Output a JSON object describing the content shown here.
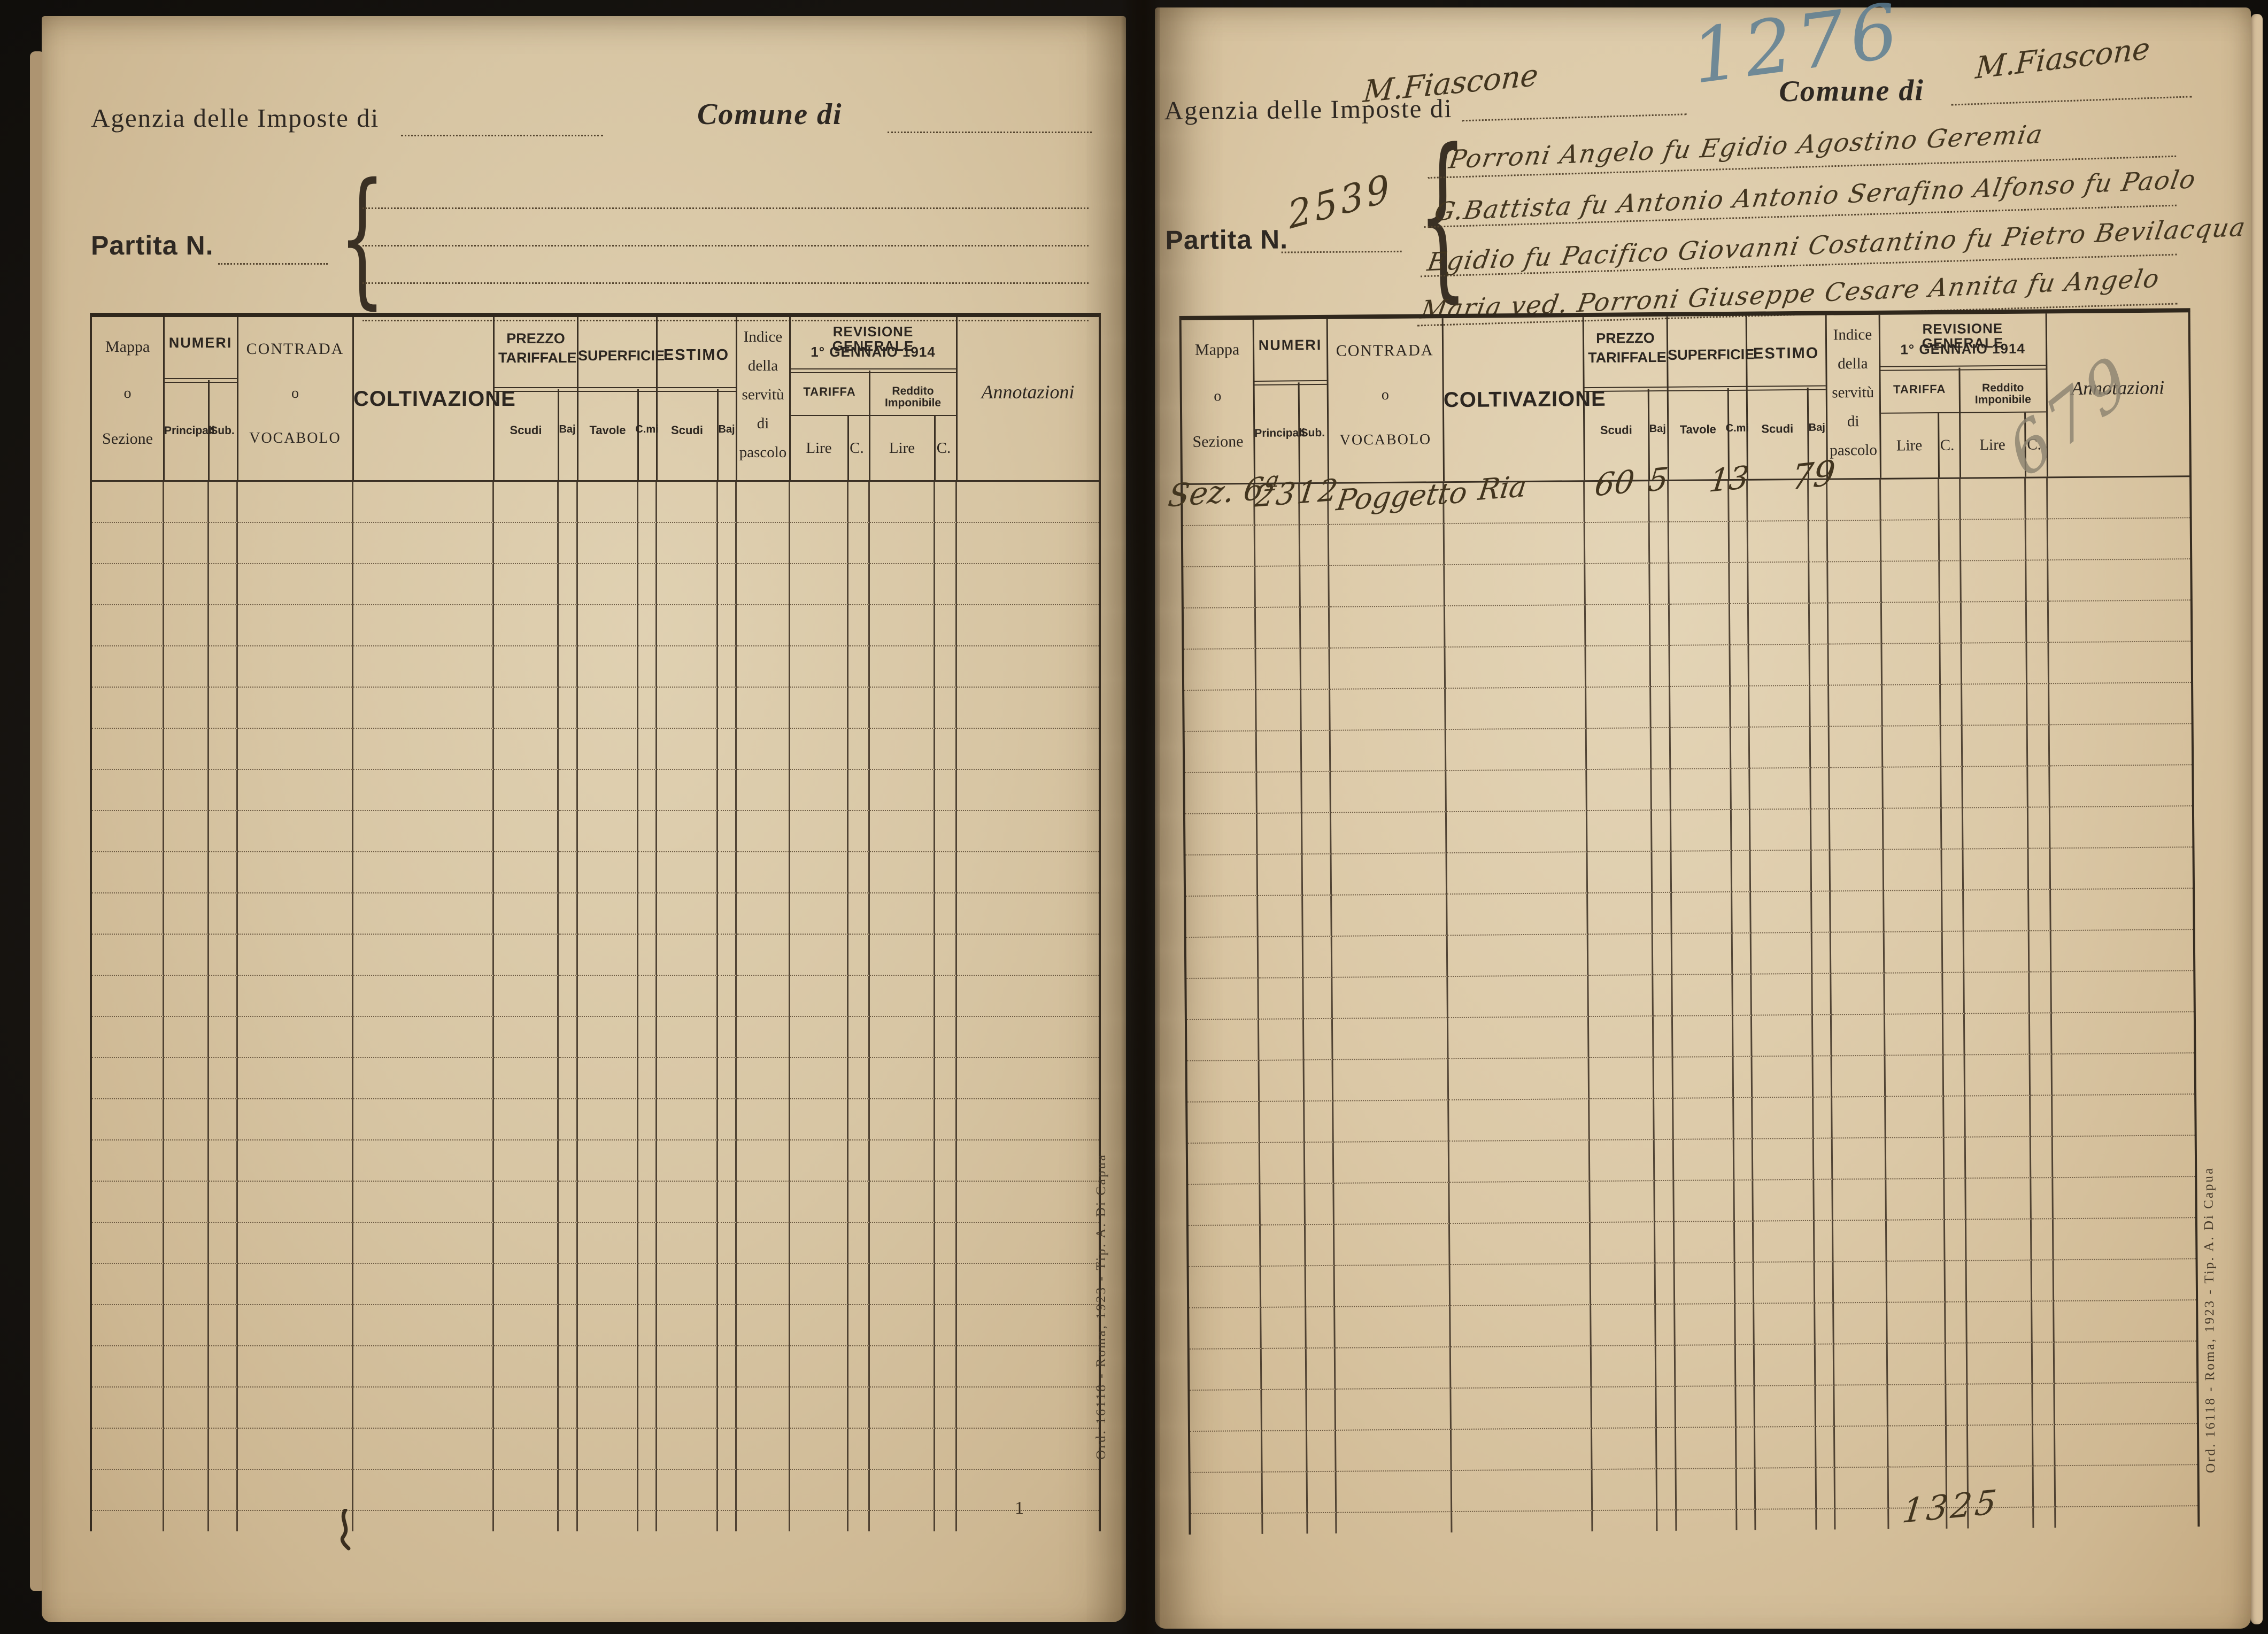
{
  "print": {
    "agenzia_label": "Agenzia delle Imposte di",
    "comune_label": "Comune di",
    "partita_label": "Partita N.",
    "imprint": "Ord. 16118 - Roma, 1923 - Tip. A. Di Capua"
  },
  "table_header": {
    "mappa_1": "Mappa",
    "mappa_2": "o",
    "mappa_3": "Sezione",
    "numeri": "NUMERI",
    "principali": "Principali",
    "sub": "Sub.",
    "contrada_1": "CONTRADA",
    "contrada_2": "o",
    "contrada_3": "VOCABOLO",
    "coltivazione": "COLTIVAZIONE",
    "prezzo_tariffale": "PREZZO TARIFFALE",
    "superficie": "SUPERFICIE",
    "estimo": "ESTIMO",
    "scudi": "Scudi",
    "baj": "Baj",
    "tavole": "Tavole",
    "cmi": "C.mi",
    "indice_1": "Indice",
    "indice_2": "della",
    "indice_3": "servitù",
    "indice_4": "di",
    "indice_5": "pascolo",
    "revisione_1": "REVISIONE GENERALE",
    "revisione_2": "1° GENNAIO 1914",
    "tariffa": "TARIFFA",
    "reddito": "Reddito Imponibile",
    "lire": "Lire",
    "c": "C.",
    "annotazioni": "Annotazioni"
  },
  "right_page": {
    "folio_number": "1276",
    "agenzia_value": "M.Fiascone",
    "comune_value": "M.Fiascone",
    "partita_value": "2539",
    "holders": {
      "line1": "Porroni Angelo fu Egidio Agostino Geremia",
      "line2": "G.Battista fu Antonio Antonio Serafino Alfonso fu Paolo",
      "line3": "Egidio fu Pacifico Giovanni Costantino fu Pietro Bevilacqua",
      "line4": "Maria ved. Porroni Giuseppe Cesare Annita fu Angelo"
    },
    "annotazioni_pencil": "679",
    "row1": {
      "sezione": "Sez. 6ª",
      "numero_principale": "2312",
      "contrada": "Poggetto",
      "coltivazione": "Ria",
      "prezzo_scudi": "60",
      "prezzo_baj": "5",
      "superficie_tavole": "13",
      "estimo_scudi": "79"
    },
    "totale": "1325"
  },
  "left_page": {
    "stray_tick": "1"
  },
  "grid": {
    "rows": 25
  }
}
